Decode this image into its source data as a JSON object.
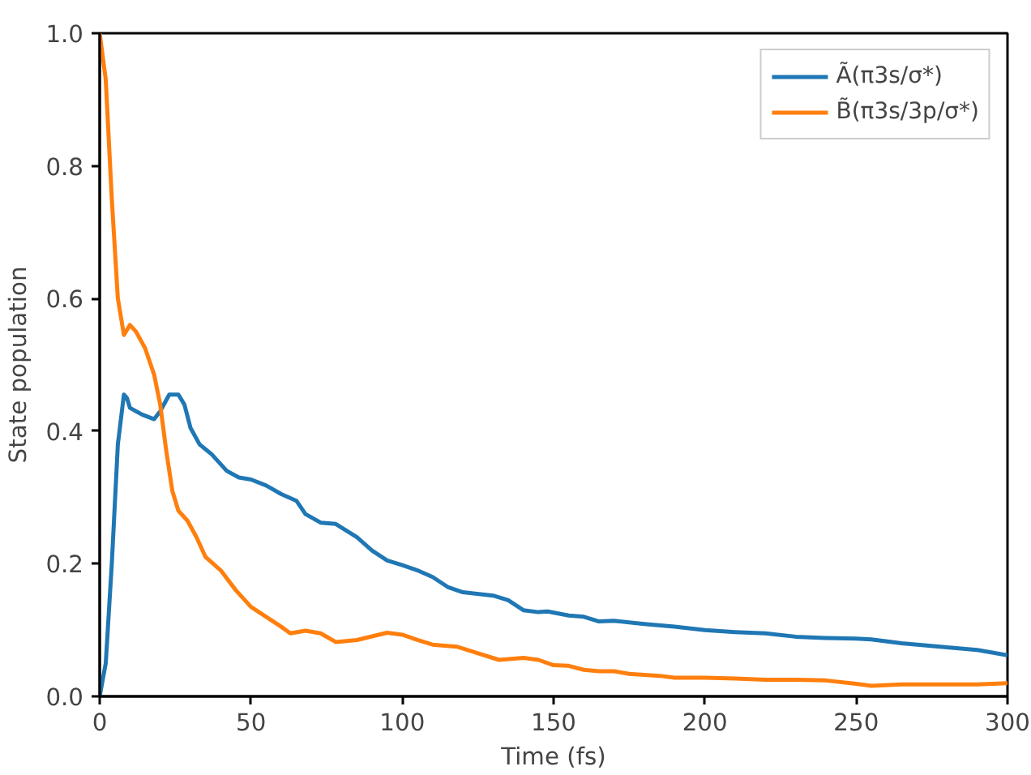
{
  "chart_data": {
    "type": "line",
    "xlabel": "Time (fs)",
    "ylabel": "State population",
    "xlim": [
      0,
      300
    ],
    "ylim": [
      0,
      1.0
    ],
    "xticks": [
      0,
      50,
      100,
      150,
      200,
      250,
      300
    ],
    "yticks": [
      {
        "value": 0,
        "label": "0.0"
      },
      0.2,
      0.4,
      0.6,
      0.8,
      {
        "value": 1.0,
        "label": "1.0"
      }
    ],
    "grid": false,
    "legend": "top right",
    "marker": "none",
    "line_style": "solid",
    "series": [
      {
        "name": "Ã(π3s/σ*)",
        "color": "#1f77b4",
        "x": [
          0,
          2,
          4,
          6,
          8,
          9,
          10,
          14,
          18,
          20,
          23,
          26,
          28,
          30,
          33,
          37,
          42,
          46,
          50,
          55,
          60,
          65,
          68,
          73,
          78,
          85,
          90,
          95,
          100,
          105,
          110,
          115,
          120,
          130,
          135,
          140,
          145,
          148,
          155,
          160,
          165,
          170,
          180,
          190,
          200,
          210,
          220,
          230,
          240,
          250,
          255,
          265,
          280,
          290,
          300
        ],
        "values": [
          0,
          0.05,
          0.2,
          0.38,
          0.455,
          0.45,
          0.435,
          0.425,
          0.418,
          0.43,
          0.455,
          0.455,
          0.44,
          0.405,
          0.38,
          0.365,
          0.34,
          0.33,
          0.327,
          0.318,
          0.305,
          0.295,
          0.275,
          0.262,
          0.26,
          0.24,
          0.22,
          0.205,
          0.198,
          0.19,
          0.18,
          0.165,
          0.157,
          0.152,
          0.145,
          0.13,
          0.127,
          0.128,
          0.122,
          0.12,
          0.113,
          0.114,
          0.109,
          0.105,
          0.1,
          0.097,
          0.095,
          0.09,
          0.088,
          0.087,
          0.086,
          0.08,
          0.074,
          0.07,
          0.062
        ]
      },
      {
        "name": "B̃(π3s/3p/σ*)",
        "color": "#ff7f0e",
        "x": [
          0,
          2,
          4,
          6,
          8,
          10,
          12,
          15,
          18,
          20,
          22,
          24,
          26,
          29,
          32,
          35,
          40,
          45,
          50,
          55,
          60,
          63,
          68,
          73,
          78,
          85,
          95,
          100,
          105,
          110,
          118,
          125,
          132,
          140,
          145,
          150,
          155,
          160,
          165,
          170,
          175,
          185,
          190,
          200,
          210,
          220,
          230,
          240,
          250,
          255,
          265,
          280,
          290,
          300
        ],
        "values": [
          1.0,
          0.93,
          0.75,
          0.6,
          0.545,
          0.56,
          0.55,
          0.525,
          0.485,
          0.44,
          0.37,
          0.31,
          0.28,
          0.265,
          0.24,
          0.21,
          0.19,
          0.16,
          0.135,
          0.12,
          0.105,
          0.095,
          0.099,
          0.095,
          0.082,
          0.085,
          0.096,
          0.093,
          0.085,
          0.078,
          0.075,
          0.065,
          0.055,
          0.058,
          0.055,
          0.047,
          0.046,
          0.04,
          0.038,
          0.038,
          0.034,
          0.031,
          0.028,
          0.028,
          0.027,
          0.025,
          0.025,
          0.024,
          0.019,
          0.016,
          0.018,
          0.018,
          0.018,
          0.02
        ]
      }
    ]
  }
}
